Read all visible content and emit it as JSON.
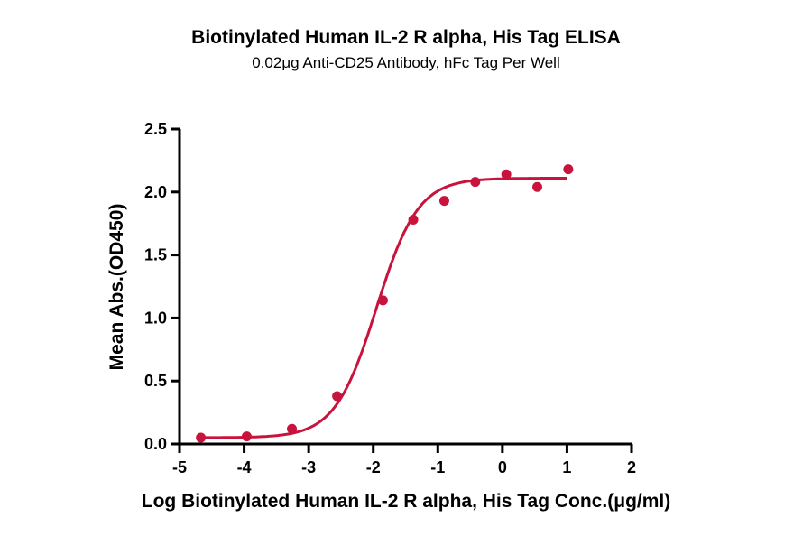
{
  "chart_data": {
    "type": "scatter",
    "title": "Biotinylated Human IL-2 R alpha, His Tag ELISA",
    "subtitle": "0.02μg Anti-CD25 Antibody, hFc Tag Per Well",
    "xlabel": "Log Biotinylated Human IL-2 R alpha, His Tag Conc.(μg/ml)",
    "ylabel": "Mean Abs.(OD450)",
    "xlim": [
      -5,
      2
    ],
    "ylim": [
      0,
      2.5
    ],
    "xticks": [
      "-5",
      "-4",
      "-3",
      "-2",
      "-1",
      "0",
      "1",
      "2"
    ],
    "yticks": [
      "0.0",
      "0.5",
      "1.0",
      "1.5",
      "2.0",
      "2.5"
    ],
    "grid": false,
    "color": "#c8143c",
    "points": {
      "x": [
        -4.67,
        -3.96,
        -3.26,
        -2.56,
        -1.85,
        -1.38,
        -0.9,
        -0.42,
        0.06,
        0.54,
        1.02
      ],
      "y": [
        0.05,
        0.06,
        0.12,
        0.38,
        1.14,
        1.78,
        1.93,
        2.08,
        2.14,
        2.04,
        2.18
      ]
    },
    "fit": {
      "model": "4PL",
      "bottom": 0.05,
      "top": 2.11,
      "logEC50": -1.95,
      "hill": 1.35,
      "x_range": [
        -4.67,
        1.0
      ]
    }
  }
}
